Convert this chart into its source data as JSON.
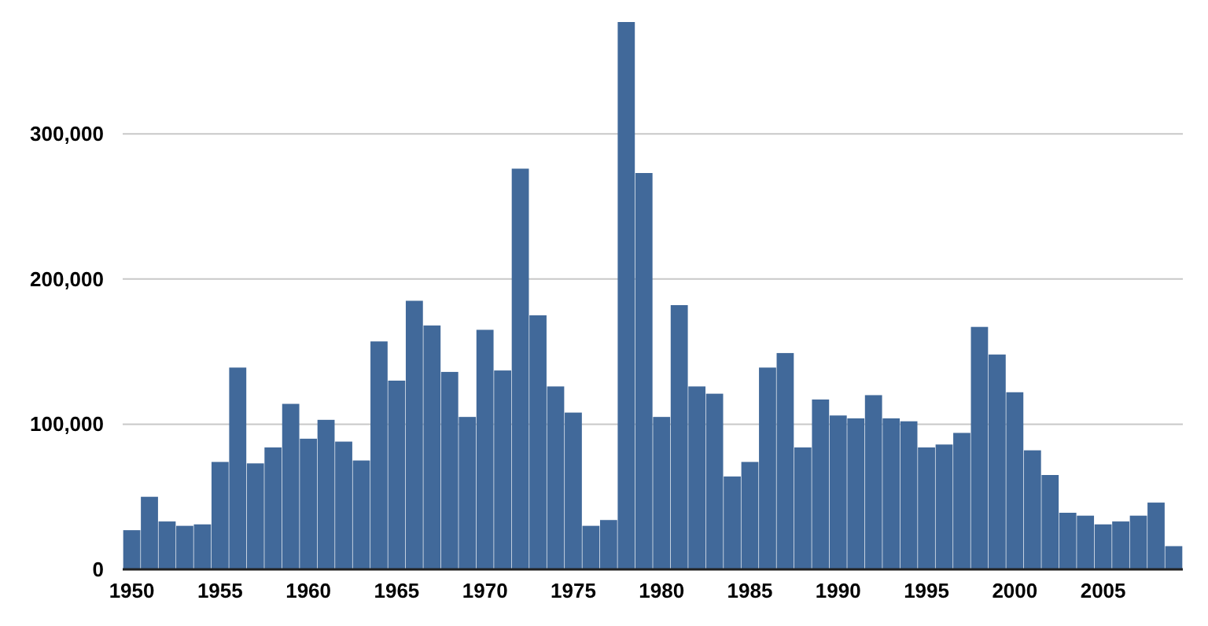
{
  "chart_data": {
    "type": "bar",
    "categories": [
      "1950",
      null,
      null,
      null,
      null,
      "1955",
      null,
      null,
      null,
      null,
      "1960",
      null,
      null,
      null,
      null,
      "1965",
      null,
      null,
      null,
      null,
      "1970",
      null,
      null,
      null,
      null,
      "1975",
      null,
      null,
      null,
      null,
      "1980",
      null,
      null,
      null,
      null,
      "1985",
      null,
      null,
      null,
      null,
      "1990",
      null,
      null,
      null,
      null,
      "1995",
      null,
      null,
      null,
      null,
      "2000",
      null,
      null,
      null,
      null,
      "2005",
      null,
      null,
      null,
      null
    ],
    "values": [
      27000,
      50000,
      33000,
      30000,
      31000,
      74000,
      139000,
      73000,
      84000,
      114000,
      90000,
      103000,
      88000,
      75000,
      157000,
      130000,
      185000,
      168000,
      136000,
      105000,
      165000,
      137000,
      276000,
      175000,
      126000,
      108000,
      30000,
      34000,
      377000,
      273000,
      105000,
      182000,
      126000,
      121000,
      64000,
      74000,
      139000,
      149000,
      84000,
      117000,
      106000,
      104000,
      120000,
      104000,
      102000,
      84000,
      86000,
      94000,
      167000,
      148000,
      122000,
      82000,
      65000,
      39000,
      37000,
      31000,
      33000,
      37000,
      46000,
      16000
    ],
    "color": "#41699a",
    "ylim": [
      0,
      377000
    ],
    "yticks": [
      0,
      {
        "value": 100000,
        "label": "100,000"
      },
      {
        "value": 200000,
        "label": "200,000"
      },
      {
        "value": 300000,
        "label": "300,000"
      }
    ],
    "grid": "y"
  }
}
